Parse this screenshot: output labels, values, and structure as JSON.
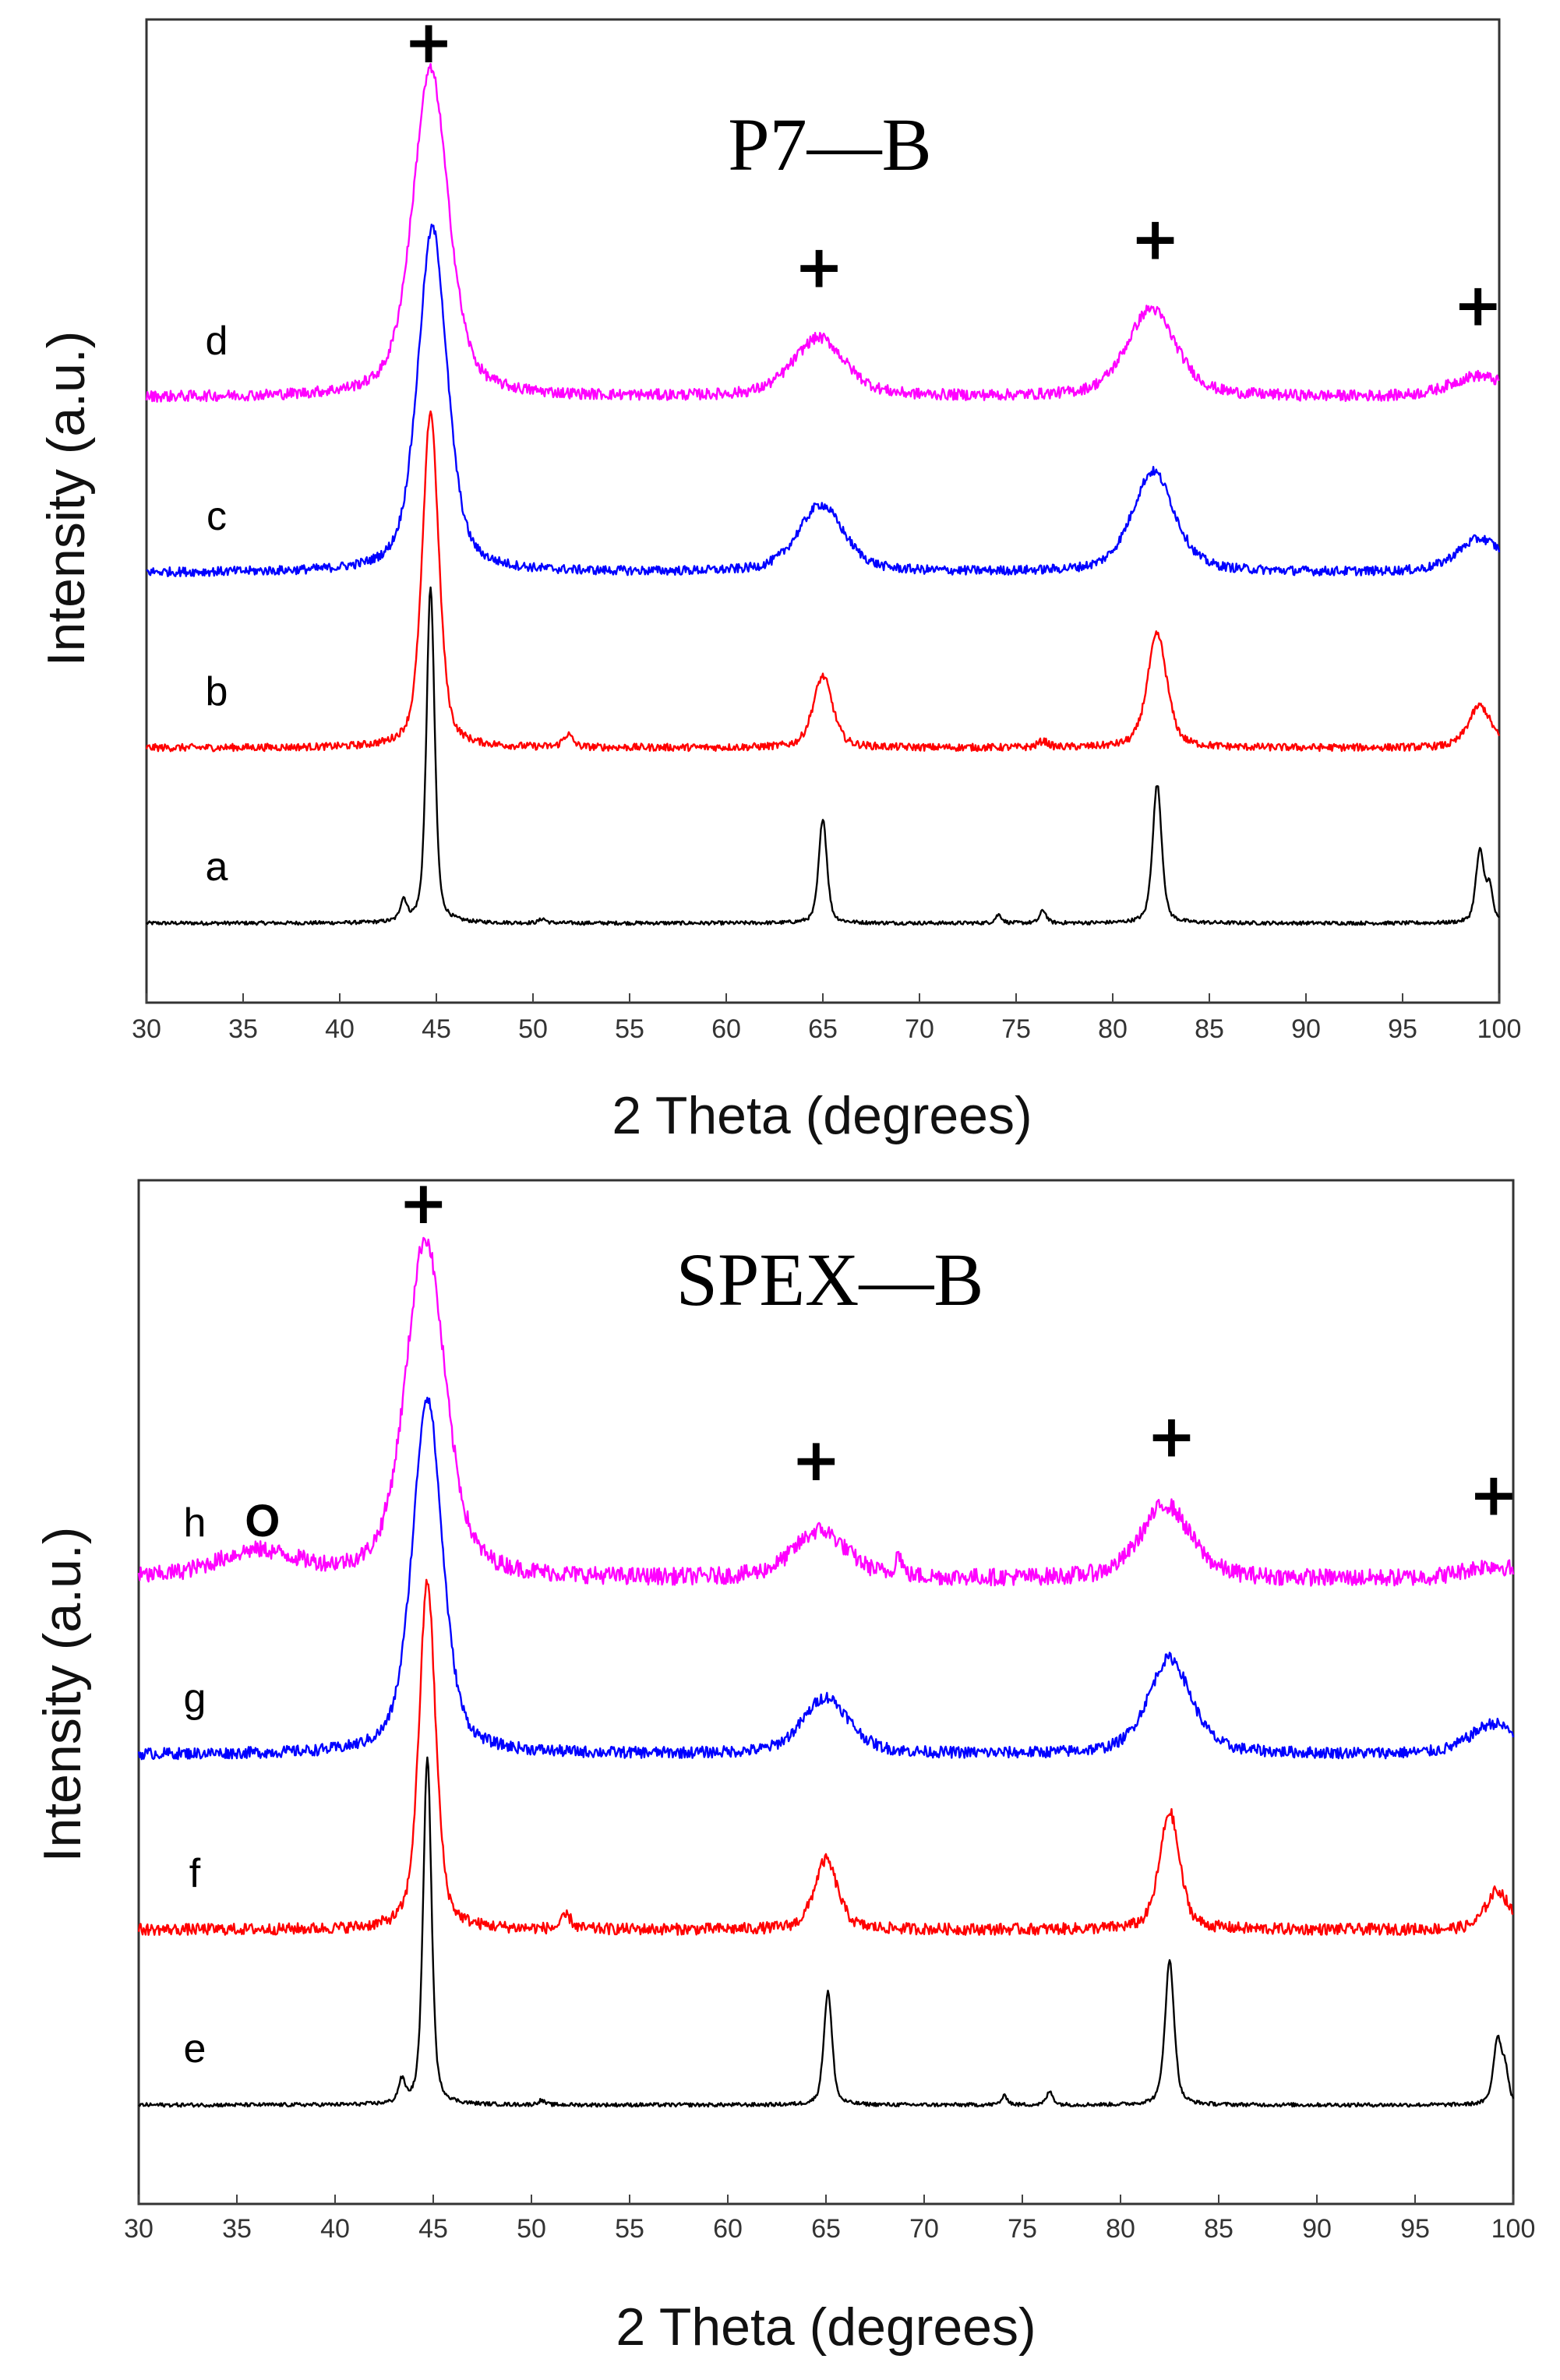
{
  "chart_data": [
    {
      "type": "line",
      "title": "P7—B",
      "xlabel": "2 Theta (degrees)",
      "ylabel": "Intensity (a.u.)",
      "xlim": [
        30,
        100
      ],
      "x_ticks": [
        "30",
        "35",
        "40",
        "45",
        "50",
        "55",
        "60",
        "65",
        "70",
        "75",
        "80",
        "85",
        "90",
        "95",
        "100"
      ],
      "grid": false,
      "peak_markers": [
        {
          "symbol": "+",
          "x": 44.6
        },
        {
          "symbol": "+",
          "x": 64.8
        },
        {
          "symbol": "+",
          "x": 82.2
        },
        {
          "symbol": "+",
          "x": 98.9
        }
      ],
      "extra_markers": [],
      "series": [
        {
          "name": "a",
          "color": "#000000",
          "baseline": 0.04,
          "noise": 0.004,
          "peaks": [
            [
              44.7,
              0.8,
              0.25
            ],
            [
              65.0,
              0.25,
              0.25
            ],
            [
              82.3,
              0.33,
              0.28
            ],
            [
              99.0,
              0.17,
              0.25
            ],
            [
              43.3,
              0.05,
              0.2
            ],
            [
              50.5,
              0.01,
              0.2
            ],
            [
              74.1,
              0.02,
              0.2
            ],
            [
              76.4,
              0.03,
              0.2
            ],
            [
              99.5,
              0.08,
              0.2
            ]
          ]
        },
        {
          "name": "b",
          "color": "#ff0000",
          "baseline": 0.27,
          "noise": 0.008,
          "peaks": [
            [
              44.7,
              0.8,
              0.5
            ],
            [
              65.0,
              0.17,
              0.6
            ],
            [
              82.3,
              0.27,
              0.6
            ],
            [
              99.0,
              0.1,
              0.7
            ],
            [
              51.8,
              0.03,
              0.3
            ],
            [
              76.4,
              0.015,
              0.3
            ]
          ]
        },
        {
          "name": "c",
          "color": "#0000ff",
          "baseline": 0.52,
          "noise": 0.01,
          "peaks": [
            [
              44.8,
              0.82,
              0.9
            ],
            [
              64.9,
              0.16,
              1.4
            ],
            [
              82.1,
              0.24,
              1.3
            ],
            [
              99.0,
              0.08,
              1.4
            ]
          ]
        },
        {
          "name": "d",
          "color": "#ff00ff",
          "baseline": 0.77,
          "noise": 0.012,
          "peaks": [
            [
              44.7,
              0.78,
              1.1
            ],
            [
              64.8,
              0.14,
              1.6
            ],
            [
              82.0,
              0.21,
              1.5
            ],
            [
              98.9,
              0.05,
              1.7
            ]
          ]
        }
      ]
    },
    {
      "type": "line",
      "title": "SPEX—B",
      "xlabel": "2 Theta (degrees)",
      "ylabel": "Intensity (a.u.)",
      "xlim": [
        30,
        100
      ],
      "x_ticks": [
        "30",
        "35",
        "40",
        "45",
        "50",
        "55",
        "60",
        "65",
        "70",
        "75",
        "80",
        "85",
        "90",
        "95",
        "100"
      ],
      "grid": false,
      "peak_markers": [
        {
          "symbol": "+",
          "x": 44.5
        },
        {
          "symbol": "+",
          "x": 64.5
        },
        {
          "symbol": "+",
          "x": 82.6
        },
        {
          "symbol": "+",
          "x": 99.0
        }
      ],
      "extra_markers": [
        {
          "symbol": "O",
          "x": 36.3
        }
      ],
      "series": [
        {
          "name": "e",
          "color": "#000000",
          "baseline": 0.04,
          "noise": 0.004,
          "peaks": [
            [
              44.7,
              0.8,
              0.25
            ],
            [
              65.1,
              0.26,
              0.25
            ],
            [
              82.5,
              0.33,
              0.28
            ],
            [
              99.2,
              0.15,
              0.25
            ],
            [
              43.4,
              0.05,
              0.2
            ],
            [
              50.5,
              0.01,
              0.2
            ],
            [
              74.1,
              0.02,
              0.2
            ],
            [
              76.4,
              0.03,
              0.2
            ],
            [
              99.6,
              0.07,
              0.2
            ]
          ]
        },
        {
          "name": "f",
          "color": "#ff0000",
          "baseline": 0.29,
          "noise": 0.012,
          "peaks": [
            [
              44.7,
              0.8,
              0.5
            ],
            [
              65.0,
              0.16,
              0.7
            ],
            [
              82.5,
              0.27,
              0.6
            ],
            [
              99.2,
              0.09,
              0.7
            ],
            [
              51.8,
              0.03,
              0.3
            ]
          ]
        },
        {
          "name": "g",
          "color": "#0000ff",
          "baseline": 0.53,
          "noise": 0.012,
          "peaks": [
            [
              44.7,
              0.82,
              0.9
            ],
            [
              65.0,
              0.13,
              1.4
            ],
            [
              82.5,
              0.22,
              1.3
            ],
            [
              99.0,
              0.07,
              1.4
            ]
          ]
        },
        {
          "name": "h",
          "color": "#ff00ff",
          "baseline": 0.8,
          "noise": 0.018,
          "peaks": [
            [
              44.6,
              0.78,
              1.2
            ],
            [
              64.7,
              0.11,
              1.6
            ],
            [
              82.3,
              0.17,
              1.5
            ],
            [
              98.9,
              0.03,
              1.7
            ],
            [
              36.0,
              0.06,
              2.5
            ],
            [
              68.7,
              0.05,
              0.2
            ]
          ]
        }
      ]
    }
  ]
}
